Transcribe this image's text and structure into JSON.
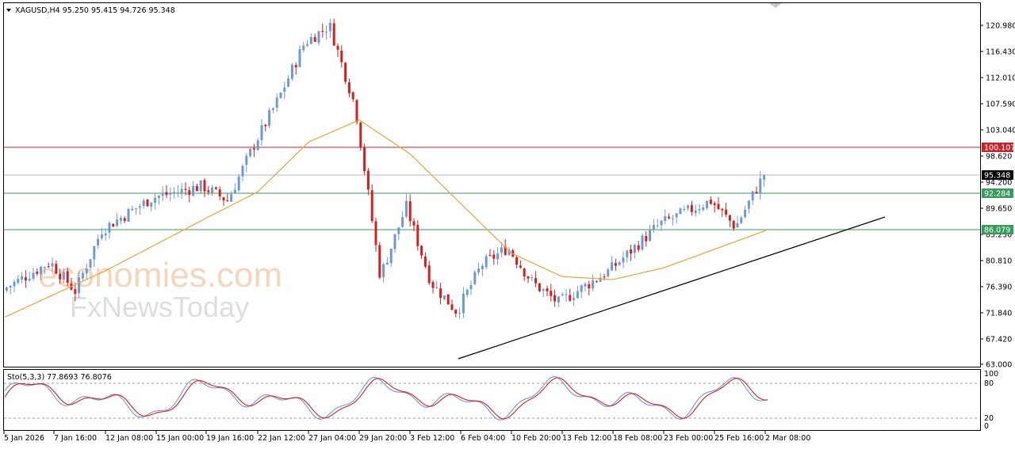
{
  "header": {
    "collapse_icon": "triangle-down-icon",
    "symbol_info": "XAGUSD,H4  95.250 95.415 94.726 95.348"
  },
  "watermark": {
    "line1": "economies.com",
    "line2": "FxNewsToday"
  },
  "colors": {
    "bull": "#6f98d8",
    "bear": "#d61e1e",
    "ma": "#e8a33c",
    "resistance": "#c0272d",
    "support": "#3a9a5c",
    "current": "#b8b8b8",
    "trendline": "#000000",
    "stoch_main": "#6f98d8",
    "stoch_signal": "#d61e1e"
  },
  "price_axis": {
    "ticks": [
      "120.980",
      "116.430",
      "112.010",
      "107.590",
      "103.040",
      "98.620",
      "94.200",
      "89.650",
      "85.230",
      "80.810",
      "76.390",
      "71.840",
      "67.420",
      "63.000"
    ],
    "labels": [
      {
        "text": "100.107",
        "value": 100.107,
        "kind": "resistance"
      },
      {
        "text": "95.348",
        "value": 95.348,
        "kind": "current"
      },
      {
        "text": "92.284",
        "value": 92.284,
        "kind": "support"
      },
      {
        "text": "86.079",
        "value": 86.079,
        "kind": "support"
      }
    ]
  },
  "time_axis": {
    "labels": [
      "5 Jan 2026",
      "7 Jan 16:00",
      "12 Jan 08:00",
      "15 Jan 00:00",
      "19 Jan 16:00",
      "22 Jan 12:00",
      "27 Jan 04:00",
      "29 Jan 20:00",
      "3 Feb 12:00",
      "6 Feb 04:00",
      "10 Feb 20:00",
      "13 Feb 12:00",
      "18 Feb 08:00",
      "23 Feb 00:00",
      "25 Feb 16:00",
      "2 Mar 08:00"
    ]
  },
  "stoch": {
    "header": "Sto(5,3,3) 77.8693 76.8076",
    "axis_labels": [
      "100",
      "80",
      "20",
      "0"
    ],
    "levels": [
      80,
      20
    ]
  },
  "chart_data": {
    "type": "candlestick",
    "symbol": "XAGUSD",
    "timeframe": "H4",
    "last_bar": {
      "open": 95.25,
      "high": 95.415,
      "low": 94.726,
      "close": 95.348
    },
    "y_range": [
      63.0,
      122.0
    ],
    "horizontal_levels": [
      100.107,
      95.348,
      92.284,
      86.079
    ],
    "trendline": {
      "from": {
        "x": "6 Feb 04:00",
        "y": 64.0
      },
      "to": {
        "x": "beyond 2 Mar 08:00",
        "y": 88.2
      }
    },
    "close_path": [
      {
        "x": "5 Jan 2026",
        "y": 75.5
      },
      {
        "x": "7 Jan 16:00",
        "y": 80.5
      },
      {
        "x": "7 Jan 16:00",
        "y": 75.5
      },
      {
        "x": "12 Jan 08:00",
        "y": 86.0
      },
      {
        "x": "15 Jan 00:00",
        "y": 91.5
      },
      {
        "x": "19 Jan 16:00",
        "y": 93.5
      },
      {
        "x": "19 Jan 16:00",
        "y": 91.0
      },
      {
        "x": "22 Jan 12:00",
        "y": 100.5
      },
      {
        "x": "22 Jan 12:00",
        "y": 108.5
      },
      {
        "x": "27 Jan 04:00",
        "y": 118.0
      },
      {
        "x": "27 Jan 04:00",
        "y": 121.0
      },
      {
        "x": "29 Jan 20:00",
        "y": 107.0
      },
      {
        "x": "29 Jan 20:00",
        "y": 78.0
      },
      {
        "x": "3 Feb 12:00",
        "y": 90.0
      },
      {
        "x": "3 Feb 12:00",
        "y": 77.0
      },
      {
        "x": "6 Feb 04:00",
        "y": 72.0
      },
      {
        "x": "6 Feb 04:00",
        "y": 80.0
      },
      {
        "x": "10 Feb 20:00",
        "y": 83.0
      },
      {
        "x": "10 Feb 20:00",
        "y": 77.0
      },
      {
        "x": "13 Feb 12:00",
        "y": 73.5
      },
      {
        "x": "18 Feb 08:00",
        "y": 79.0
      },
      {
        "x": "23 Feb 00:00",
        "y": 87.0
      },
      {
        "x": "25 Feb 16:00",
        "y": 91.0
      },
      {
        "x": "25 Feb 16:00",
        "y": 86.5
      },
      {
        "x": "2 Mar 08:00",
        "y": 95.348
      }
    ],
    "moving_average": [
      {
        "x": "5 Jan 2026",
        "y": 71.0
      },
      {
        "x": "12 Jan 08:00",
        "y": 79.0
      },
      {
        "x": "19 Jan 16:00",
        "y": 88.0
      },
      {
        "x": "22 Jan 12:00",
        "y": 92.5
      },
      {
        "x": "27 Jan 04:00",
        "y": 101.0
      },
      {
        "x": "29 Jan 20:00",
        "y": 104.8
      },
      {
        "x": "3 Feb 12:00",
        "y": 99.0
      },
      {
        "x": "10 Feb 20:00",
        "y": 82.0
      },
      {
        "x": "13 Feb 12:00",
        "y": 78.0
      },
      {
        "x": "18 Feb 08:00",
        "y": 77.5
      },
      {
        "x": "23 Feb 00:00",
        "y": 79.5
      },
      {
        "x": "2 Mar 08:00",
        "y": 86.0
      }
    ]
  }
}
